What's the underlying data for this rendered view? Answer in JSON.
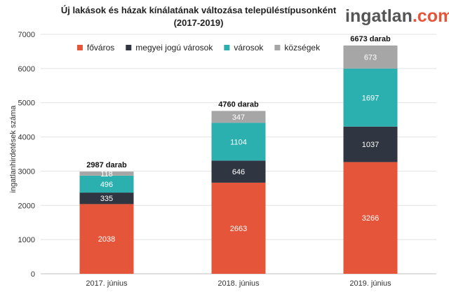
{
  "brand": {
    "logo_main": "ingatlan",
    "logo_dot": ".",
    "logo_tld": "com",
    "color_main": "#555555",
    "color_accent": "#e4553a"
  },
  "chart_data": {
    "type": "bar",
    "stacked": true,
    "title": [
      "Új lakások és házak kínálatának változása településtípusonként",
      "(2017-2019)"
    ],
    "xlabel": "",
    "ylabel": "ingatlanhirdetések száma",
    "ylim": [
      0,
      7000
    ],
    "yticks": [
      0,
      1000,
      2000,
      3000,
      4000,
      5000,
      6000,
      7000
    ],
    "grid": true,
    "legend_position": "top",
    "categories": [
      "2017. június",
      "2018. június",
      "2019. június"
    ],
    "series": [
      {
        "name": "főváros",
        "color": "#e4553a",
        "values": [
          2038,
          2663,
          3266
        ]
      },
      {
        "name": "megyei jogú városok",
        "color": "#303641",
        "values": [
          335,
          646,
          1037
        ]
      },
      {
        "name": "városok",
        "color": "#2bafaf",
        "values": [
          496,
          1104,
          1697
        ]
      },
      {
        "name": "községek",
        "color": "#a6a6a6",
        "values": [
          118,
          347,
          673
        ]
      }
    ],
    "totals": [
      "2987 darab",
      "4760 darab",
      "6673 darab"
    ]
  }
}
